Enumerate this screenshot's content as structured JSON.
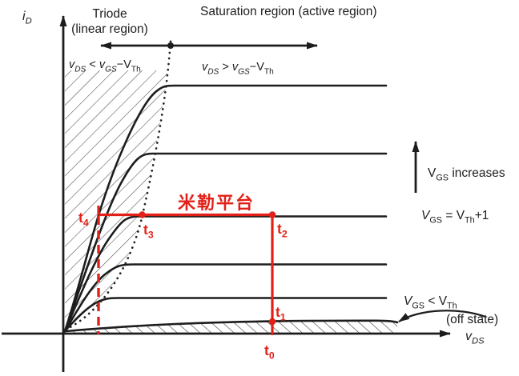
{
  "figure_title": "MOSFET output characteristics with Miller plateau trajectory",
  "colors": {
    "annotation_red": "#e32017",
    "curve_black": "#1d1d1d",
    "hatch_gray": "#3f3f3f"
  },
  "labels": {
    "triode_title": "Triode",
    "triode_subtitle": "(linear region)",
    "saturation_title": "Saturation region (active region)",
    "miller_plateau": "米勒平台",
    "off_state": "(off state)"
  },
  "formulas": {
    "y_axis": [
      {
        "t": "i",
        "it": true
      },
      {
        "t": "D",
        "sub": true,
        "it": true
      }
    ],
    "x_axis": [
      {
        "t": "v",
        "it": true
      },
      {
        "t": "DS",
        "sub": true,
        "it": true
      }
    ],
    "triode_cond": [
      {
        "t": "v",
        "it": true
      },
      {
        "t": "DS",
        "sub": true,
        "it": true
      },
      {
        "t": " < "
      },
      {
        "t": "v",
        "it": true
      },
      {
        "t": "GS",
        "sub": true,
        "it": true
      },
      {
        "t": "−"
      },
      {
        "t": "V"
      },
      {
        "t": "Th",
        "sub": true
      }
    ],
    "sat_cond": [
      {
        "t": "v",
        "it": true
      },
      {
        "t": "DS",
        "sub": true,
        "it": true
      },
      {
        "t": " > "
      },
      {
        "t": "v",
        "it": true
      },
      {
        "t": "GS",
        "sub": true,
        "it": true
      },
      {
        "t": "−"
      },
      {
        "t": "V"
      },
      {
        "t": "Th",
        "sub": true
      }
    ],
    "vgs_increases": [
      {
        "t": "V"
      },
      {
        "t": "GS",
        "sub": true
      },
      {
        "t": " increases"
      }
    ],
    "vgs_equals": [
      {
        "t": "V",
        "it": true
      },
      {
        "t": "GS",
        "sub": true
      },
      {
        "t": " = "
      },
      {
        "t": "V"
      },
      {
        "t": "Th",
        "sub": true
      },
      {
        "t": "+1"
      }
    ],
    "vgs_less": [
      {
        "t": "V",
        "it": true
      },
      {
        "t": "GS",
        "sub": true
      },
      {
        "t": " < "
      },
      {
        "t": "V"
      },
      {
        "t": "Th",
        "sub": true
      }
    ],
    "t0": [
      {
        "t": "t"
      },
      {
        "t": "0",
        "sub": true
      }
    ],
    "t1": [
      {
        "t": "t"
      },
      {
        "t": "1",
        "sub": true
      }
    ],
    "t2": [
      {
        "t": "t"
      },
      {
        "t": "2",
        "sub": true
      }
    ],
    "t3": [
      {
        "t": "t"
      },
      {
        "t": "3",
        "sub": true
      }
    ],
    "t4": [
      {
        "t": "t"
      },
      {
        "t": "4",
        "sub": true
      }
    ]
  }
}
